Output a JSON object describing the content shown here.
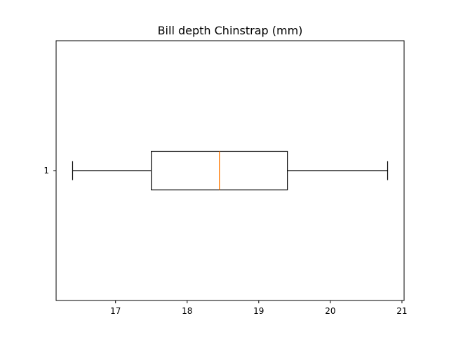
{
  "chart_data": {
    "type": "boxplot",
    "orientation": "horizontal",
    "title": "Bill depth Chinstrap (mm)",
    "xlabel": "",
    "ylabel": "",
    "xlim": [
      16.17,
      21.03
    ],
    "xticks": [
      17,
      18,
      19,
      20,
      21
    ],
    "categories": [
      "1"
    ],
    "boxes": [
      {
        "label": "1",
        "whisker_low": 16.4,
        "q1": 17.5,
        "median": 18.45,
        "q3": 19.4,
        "whisker_high": 20.8
      }
    ],
    "median_color": "#ff7f0e",
    "box_color": "#000000",
    "grid": false
  }
}
